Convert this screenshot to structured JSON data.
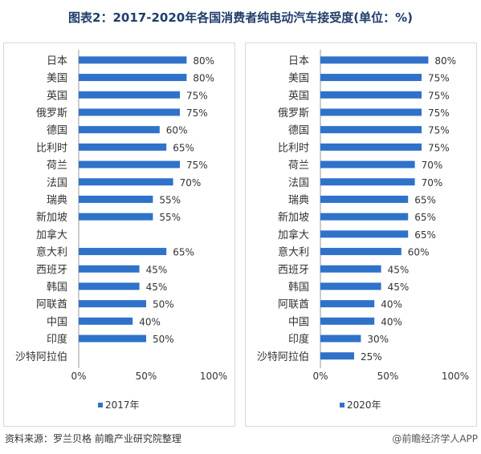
{
  "title": "图表2：2017-2020年各国消费者纯电动汽车接受度(单位：%)",
  "source": "资料来源：罗兰贝格 前瞻产业研究院整理",
  "watermark": "@前瞻经济学人APP",
  "colors": {
    "bar": "#2f72c9",
    "axis": "#999999",
    "text": "#333333"
  },
  "chart_data": [
    {
      "type": "bar",
      "orientation": "horizontal",
      "categories": [
        "日本",
        "美国",
        "英国",
        "俄罗斯",
        "德国",
        "比利时",
        "荷兰",
        "法国",
        "瑞典",
        "新加坡",
        "加拿大",
        "意大利",
        "西班牙",
        "韩国",
        "阿联酋",
        "中国",
        "印度",
        "沙特阿拉伯"
      ],
      "series": [
        {
          "name": "2017年",
          "values": [
            80,
            80,
            75,
            75,
            60,
            65,
            75,
            70,
            55,
            55,
            null,
            65,
            45,
            45,
            50,
            40,
            50,
            null
          ]
        }
      ],
      "value_labels": [
        "80%",
        "80%",
        "75%",
        "75%",
        "60%",
        "65%",
        "75%",
        "70%",
        "55%",
        "55%",
        "",
        "65%",
        "45%",
        "45%",
        "50%",
        "40%",
        "50%",
        ""
      ],
      "xlim": [
        0,
        100
      ],
      "xticks": [
        "0%",
        "50%",
        "100%"
      ],
      "legend": "bottom"
    },
    {
      "type": "bar",
      "orientation": "horizontal",
      "categories": [
        "日本",
        "美国",
        "英国",
        "俄罗斯",
        "德国",
        "比利时",
        "荷兰",
        "法国",
        "瑞典",
        "新加坡",
        "加拿大",
        "意大利",
        "西班牙",
        "韩国",
        "阿联酋",
        "中国",
        "印度",
        "沙特阿拉伯"
      ],
      "series": [
        {
          "name": "2020年",
          "values": [
            80,
            75,
            75,
            75,
            75,
            75,
            70,
            70,
            65,
            65,
            65,
            60,
            45,
            45,
            40,
            40,
            30,
            25
          ]
        }
      ],
      "value_labels": [
        "80%",
        "75%",
        "75%",
        "75%",
        "75%",
        "75%",
        "70%",
        "70%",
        "65%",
        "65%",
        "65%",
        "60%",
        "45%",
        "45%",
        "40%",
        "40%",
        "30%",
        "25%"
      ],
      "xlim": [
        0,
        100
      ],
      "xticks": [
        "0%",
        "50%",
        "100%"
      ],
      "legend": "bottom"
    }
  ]
}
